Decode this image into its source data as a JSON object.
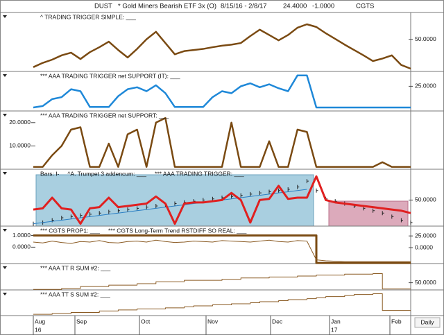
{
  "header": {
    "symbol": "DUST",
    "name": "* Gold Miners Bearish ETF 3x (O)",
    "range": "8/15/16 - 2/8/17",
    "last": "24.4000",
    "change": "-1.0000",
    "study": "CGTS"
  },
  "chart_data": [
    {
      "type": "line",
      "ylim": [
        20,
        75
      ],
      "yticks": [
        {
          "value": 50,
          "label": "50.0000"
        }
      ],
      "tick_side": "right",
      "series": [
        {
          "name": "^ TRADING TRIGGER SIMPLE: ___",
          "color": "#7a4a12",
          "width": 2.5,
          "style": "line",
          "values": [
            24,
            28,
            31,
            35,
            37.5,
            31.6,
            38,
            42.6,
            47.8,
            40,
            33,
            41,
            50,
            57,
            46.5,
            36,
            39,
            40,
            41,
            42.6,
            44,
            45,
            46.5,
            53,
            59,
            54,
            49,
            54,
            60.8,
            64,
            61.5,
            55.6,
            50.4,
            45,
            40,
            35,
            29.7,
            32,
            35,
            26,
            22.6
          ]
        }
      ]
    },
    {
      "type": "line",
      "ylim": [
        0,
        40
      ],
      "yticks": [
        {
          "value": 25,
          "label": "25.0000"
        }
      ],
      "tick_side": "right",
      "series": [
        {
          "name": "*** AAA TRADING TRIGGER net SUPPORT (IT): ___",
          "color": "#1e88d8",
          "width": 2.5,
          "style": "line",
          "values": [
            3.5,
            5,
            12,
            14,
            22,
            20,
            4,
            4,
            4,
            15,
            22,
            24,
            20,
            26,
            18,
            4,
            4,
            4,
            4,
            14,
            20,
            18,
            25,
            28,
            24,
            27,
            23,
            20,
            36,
            36,
            3.5,
            3.5,
            3.5,
            3.5,
            3.5,
            3.5,
            3.5,
            3.5,
            3.5,
            3.5,
            3.5
          ]
        }
      ]
    },
    {
      "type": "line",
      "ylim": [
        0,
        25
      ],
      "yticks": [
        {
          "value": 20,
          "label": "20.0000"
        },
        {
          "value": 10,
          "label": "10.0000"
        }
      ],
      "tick_side": "left",
      "series": [
        {
          "name": "*** AAA TRADING TRIGGER net SUPPORT: ___",
          "color": "#7a4a12",
          "width": 2.5,
          "style": "line",
          "values": [
            1,
            1,
            6,
            10,
            17,
            18,
            1,
            1,
            11,
            1,
            15,
            17,
            1,
            20,
            22,
            1,
            1,
            1,
            1,
            1,
            1,
            20,
            1,
            1,
            1,
            12,
            1,
            1,
            17,
            16,
            1,
            1,
            1,
            1,
            1,
            1,
            1,
            3,
            1,
            1,
            1
          ]
        }
      ]
    },
    {
      "type": "line",
      "ylim": [
        28,
        76
      ],
      "yticks": [
        {
          "value": 50,
          "label": "50.0000"
        }
      ],
      "tick_side": "right",
      "series": [
        {
          "name": "Bars: I-",
          "color": "#222222",
          "width": 1,
          "style": "bars",
          "values": [
            30,
            31,
            33,
            35,
            36,
            37,
            38,
            39,
            40,
            41,
            42,
            43,
            44,
            45,
            46,
            47,
            48,
            49,
            50,
            51,
            52,
            53,
            54,
            55,
            56,
            57,
            58,
            59,
            61,
            66,
            58,
            51,
            49,
            47,
            45,
            43,
            41,
            39,
            36,
            33,
            31
          ]
        },
        {
          "name": "^A. Trumpet 3 addencum: ___",
          "color": "#2a7fc4",
          "width": 1,
          "style": "line",
          "values": [
            30,
            31,
            32,
            33,
            34,
            35,
            36,
            37,
            38,
            39,
            40,
            41,
            42,
            43,
            44,
            45,
            46,
            47,
            48,
            49,
            50,
            51,
            52,
            53,
            54,
            55,
            56,
            57,
            58,
            59,
            null,
            null,
            null,
            null,
            null,
            null,
            null,
            null,
            null,
            null,
            null
          ]
        },
        {
          "name": "*** AAA TRADING TRIGGER: ___",
          "color": "#e02020",
          "width": 3,
          "style": "line",
          "values": [
            42,
            43,
            52,
            43,
            42,
            30,
            43,
            44,
            52,
            44,
            45,
            46,
            47,
            53,
            47,
            30,
            47,
            48,
            48,
            49,
            50,
            56,
            50,
            31,
            50,
            51,
            62,
            51,
            52,
            52,
            70,
            50,
            48,
            47,
            46,
            45,
            44,
            43,
            42,
            41,
            39
          ]
        }
      ]
    },
    {
      "type": "line",
      "ylim": [
        -1.4,
        1.8
      ],
      "yticks": [
        {
          "value": 1,
          "label": "1.0000"
        },
        {
          "value": 0,
          "label": "0.0000"
        }
      ],
      "tick_side": "left",
      "y2lim": [
        -34,
        46
      ],
      "y2ticks": [
        {
          "value": 25,
          "label": "25.0000"
        },
        {
          "value": 0,
          "label": "0.0000"
        }
      ],
      "series": [
        {
          "name": "*** CGTS PROP1: ___",
          "color": "#7a4a12",
          "width": 3,
          "style": "step",
          "values": [
            1,
            1,
            1,
            1,
            1,
            1,
            1,
            1,
            1,
            1,
            1,
            1,
            1,
            1,
            1,
            1,
            1,
            1,
            1,
            1,
            1,
            1,
            1,
            1,
            1,
            1,
            1,
            1,
            1,
            1,
            -1.35,
            -1.35,
            -1.35,
            -1.35,
            -1.35,
            -1.35,
            -1.35,
            -1.35,
            -1.35,
            -1.35,
            -1.35
          ]
        },
        {
          "name": "*** CGTS Long-Term Trend RSTDIFF SO REAL: ___",
          "color": "#8a5a22",
          "width": 1,
          "style": "line",
          "axis": "y2",
          "values": [
            12,
            10,
            14,
            11,
            9,
            13,
            12,
            15,
            11,
            10,
            13,
            14,
            12,
            16,
            13,
            11,
            12,
            14,
            13,
            12,
            15,
            14,
            13,
            12,
            14,
            16,
            13,
            12,
            15,
            14,
            -26,
            -28,
            -29,
            -30,
            -30,
            -30,
            -30,
            -30,
            -30,
            -30,
            -30
          ]
        }
      ]
    },
    {
      "type": "line",
      "ylim": [
        35,
        90
      ],
      "yticks": [
        {
          "value": 50,
          "label": "50.0000"
        }
      ],
      "tick_side": "right",
      "series": [
        {
          "name": "*** AAA TT R SUM #2: ___",
          "color": "#8a5a22",
          "width": 1,
          "style": "step",
          "values": [
            36,
            36,
            36,
            38,
            38,
            42,
            42,
            42,
            45,
            45,
            45,
            48,
            48,
            52,
            52,
            52,
            55,
            55,
            55,
            55,
            57,
            57,
            60,
            60,
            60,
            62,
            62,
            62,
            64,
            64,
            66,
            66,
            66,
            68,
            68,
            68,
            69,
            37,
            37,
            37,
            37
          ]
        }
      ]
    },
    {
      "type": "line",
      "ylim": [
        0,
        100
      ],
      "tick_side": "right",
      "series": [
        {
          "name": "*** AAA TT S SUM #2: ___",
          "color": "#8a5a22",
          "width": 1,
          "style": "step",
          "values": [
            5,
            5,
            8,
            8,
            12,
            12,
            12,
            18,
            18,
            22,
            22,
            26,
            26,
            26,
            30,
            30,
            34,
            38,
            38,
            42,
            42,
            46,
            46,
            50,
            54,
            54,
            58,
            62,
            62,
            66,
            70,
            74,
            74,
            78,
            82,
            82,
            85,
            20,
            20,
            20,
            20
          ]
        }
      ]
    }
  ],
  "x_axis": {
    "months": [
      {
        "label": "Aug",
        "year": "16"
      },
      {
        "label": "Sep"
      },
      {
        "label": "Oct"
      },
      {
        "label": "Nov"
      },
      {
        "label": "Dec"
      },
      {
        "label": "Jan",
        "year": "17"
      },
      {
        "label": "Feb"
      }
    ],
    "period": "Daily"
  }
}
